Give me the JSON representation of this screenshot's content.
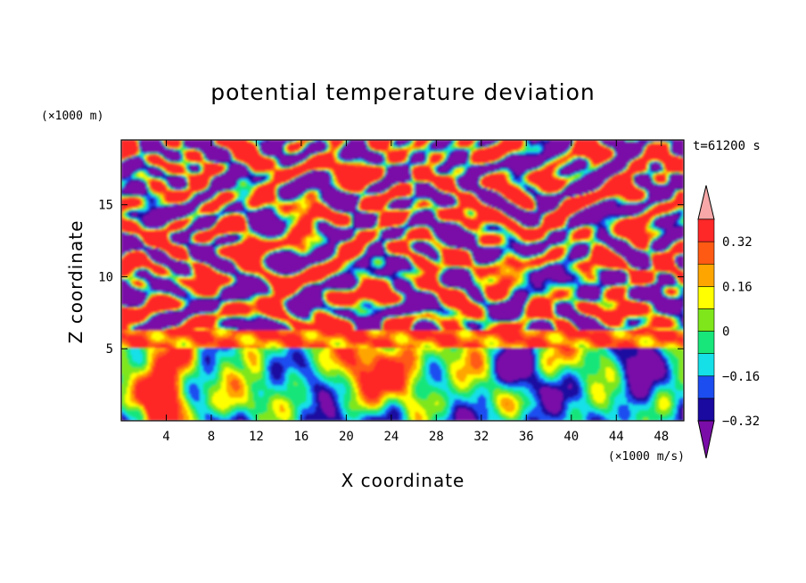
{
  "chart_data": {
    "type": "heatmap",
    "title": "potential temperature deviation",
    "xlabel": "X coordinate",
    "ylabel": "Z coordinate",
    "x_unit": "(×1000 m/s)",
    "y_unit": "(×1000 m)",
    "time_label": "t=61200 s",
    "xlim": [
      0,
      50
    ],
    "ylim": [
      0,
      19.5
    ],
    "x_ticks": [
      4,
      8,
      12,
      16,
      20,
      24,
      28,
      32,
      36,
      40,
      44,
      48
    ],
    "y_ticks": [
      5,
      10,
      15
    ],
    "colorbar": {
      "levels": [
        -0.4,
        -0.32,
        -0.24,
        -0.16,
        -0.08,
        0,
        0.08,
        0.16,
        0.24,
        0.32,
        0.4
      ],
      "colors": [
        "#7a0da8",
        "#1a0aa0",
        "#1c4df0",
        "#15e0e8",
        "#18e67a",
        "#7ee61a",
        "#ffff00",
        "#ffa500",
        "#ff5a14",
        "#ff2828",
        "#f8a8a8"
      ],
      "tick_labels": [
        "0.32",
        "0.16",
        "0",
        "-0.16",
        "-0.32"
      ],
      "extend": "both"
    }
  }
}
